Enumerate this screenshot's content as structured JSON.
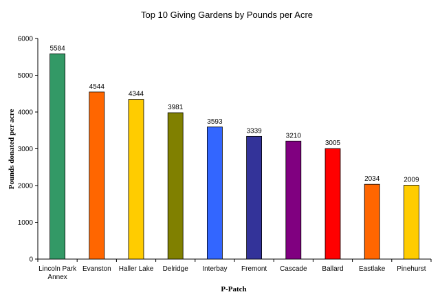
{
  "chart_data": {
    "type": "bar",
    "title": "Top 10 Giving Gardens by Pounds per Acre",
    "xlabel": "P-Patch",
    "ylabel": "Pounds donated per acre",
    "ylim": [
      0,
      6000
    ],
    "yticks": [
      "0",
      "1000",
      "2000",
      "3000",
      "4000",
      "5000",
      "6000"
    ],
    "grid": false,
    "categories": [
      [
        "Lincoln Park",
        "Annex"
      ],
      [
        "Evanston"
      ],
      [
        "Haller Lake"
      ],
      [
        "Delridge"
      ],
      [
        "Interbay"
      ],
      [
        "Fremont"
      ],
      [
        "Cascade"
      ],
      [
        "Ballard"
      ],
      [
        "Eastlake"
      ],
      [
        "Pinehurst"
      ]
    ],
    "values": [
      5584,
      4544,
      4344,
      3981,
      3593,
      3339,
      3210,
      3005,
      2034,
      2009
    ],
    "data_labels": [
      "5584",
      "4544",
      "4344",
      "3981",
      "3593",
      "3339",
      "3210",
      "3005",
      "2034",
      "2009"
    ],
    "colors": [
      "#339966",
      "#FF6600",
      "#FFCC00",
      "#808000",
      "#3366FF",
      "#333399",
      "#800080",
      "#FF0000",
      "#FF6600",
      "#FFCC00"
    ]
  }
}
